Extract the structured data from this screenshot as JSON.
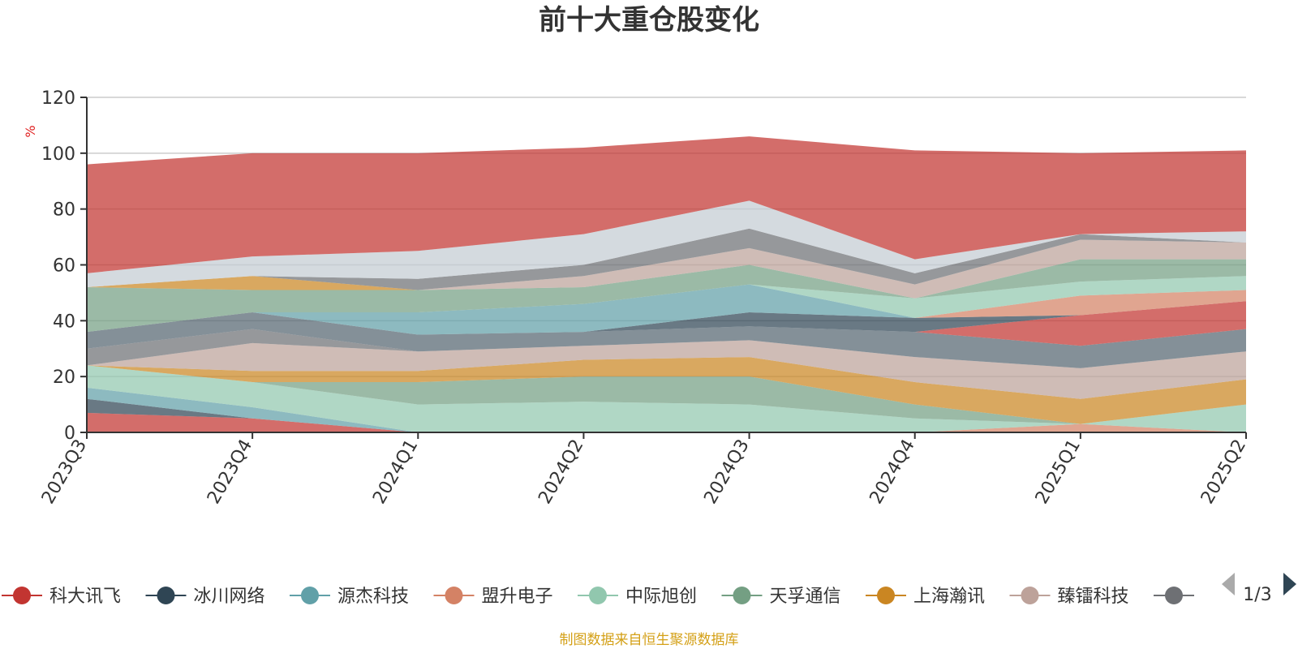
{
  "chart_data": {
    "type": "area",
    "title": "前十大重仓股变化",
    "ylabel": "%",
    "ylim": [
      0,
      120
    ],
    "yticks": [
      0,
      20,
      40,
      60,
      80,
      100,
      120
    ],
    "grid": true,
    "x": [
      "2023Q3",
      "2023Q4",
      "2024Q1",
      "2024Q2",
      "2024Q3",
      "2024Q4",
      "2025Q1",
      "2025Q2"
    ],
    "series": [
      {
        "name": "科大讯飞",
        "color": "#c23531",
        "values": [
          7,
          5,
          0,
          0,
          0,
          0,
          0,
          0
        ]
      },
      {
        "name": "冰川网络",
        "color": "#2f4554",
        "values": [
          5,
          0,
          0,
          0,
          0,
          0,
          0,
          0
        ]
      },
      {
        "name": "源杰科技",
        "color": "#61a0a8",
        "values": [
          4,
          4,
          0,
          0,
          0,
          0,
          0,
          0
        ]
      },
      {
        "name": "盟升电子",
        "color": "#d48265",
        "values": [
          0,
          0,
          0,
          0,
          0,
          0,
          3,
          0
        ]
      },
      {
        "name": "中际旭创",
        "color": "#91c7ae",
        "values": [
          8,
          9,
          10,
          11,
          10,
          5,
          0,
          10
        ]
      },
      {
        "name": "天孚通信",
        "color": "#749f83",
        "values": [
          0,
          0,
          8,
          9,
          10,
          5,
          0,
          0
        ]
      },
      {
        "name": "上海瀚讯",
        "color": "#ca8622",
        "values": [
          0,
          4,
          4,
          6,
          7,
          8,
          9,
          9
        ]
      },
      {
        "name": "臻镭科技",
        "color": "#bda29a",
        "values": [
          0,
          10,
          7,
          5,
          6,
          9,
          11,
          10
        ]
      },
      {
        "name": "",
        "color": "#6e7074",
        "values": [
          6,
          5,
          0,
          0,
          0,
          0,
          0,
          0
        ]
      },
      {
        "name": "",
        "color": "#546570",
        "values": [
          6,
          6,
          6,
          5,
          5,
          9,
          8,
          8
        ]
      },
      {
        "name": "",
        "color": "#c23531",
        "values": [
          0,
          0,
          0,
          0,
          0,
          0,
          11,
          10
        ]
      },
      {
        "name": "",
        "color": "#2f4554",
        "values": [
          0,
          0,
          0,
          0,
          5,
          5,
          0,
          0
        ]
      },
      {
        "name": "",
        "color": "#61a0a8",
        "values": [
          0,
          0,
          8,
          10,
          10,
          0,
          0,
          0
        ]
      },
      {
        "name": "",
        "color": "#d48265",
        "values": [
          0,
          0,
          0,
          0,
          0,
          0,
          7,
          4
        ]
      },
      {
        "name": "",
        "color": "#91c7ae",
        "values": [
          0,
          0,
          0,
          0,
          0,
          7,
          5,
          5
        ]
      },
      {
        "name": "",
        "color": "#749f83",
        "values": [
          16,
          8,
          8,
          6,
          7,
          0,
          8,
          6
        ]
      },
      {
        "name": "",
        "color": "#ca8622",
        "values": [
          0,
          5,
          0,
          0,
          0,
          0,
          0,
          0
        ]
      },
      {
        "name": "",
        "color": "#bda29a",
        "values": [
          0,
          0,
          0,
          4,
          6,
          5,
          7,
          6
        ]
      },
      {
        "name": "",
        "color": "#6e7074",
        "values": [
          0,
          0,
          4,
          4,
          7,
          4,
          2,
          0
        ]
      },
      {
        "name": "",
        "color": "#c4ccd3",
        "values": [
          5,
          7,
          10,
          11,
          10,
          5,
          0,
          4
        ]
      },
      {
        "name": "",
        "color": "#c23531",
        "values": [
          39,
          37,
          35,
          31,
          23,
          39,
          29,
          29
        ]
      }
    ]
  },
  "legend": {
    "items": [
      {
        "label": "科大讯飞",
        "color": "#c23531"
      },
      {
        "label": "冰川网络",
        "color": "#2f4554"
      },
      {
        "label": "源杰科技",
        "color": "#61a0a8"
      },
      {
        "label": "盟升电子",
        "color": "#d48265"
      },
      {
        "label": "中际旭创",
        "color": "#91c7ae"
      },
      {
        "label": "天孚通信",
        "color": "#749f83"
      },
      {
        "label": "上海瀚讯",
        "color": "#ca8622"
      },
      {
        "label": "臻镭科技",
        "color": "#bda29a"
      },
      {
        "label": "",
        "color": "#6e7074"
      }
    ],
    "page": "1/3",
    "prev_icon": "triangle-left-icon",
    "next_icon": "triangle-right-icon"
  },
  "source": "制图数据来自恒生聚源数据库"
}
